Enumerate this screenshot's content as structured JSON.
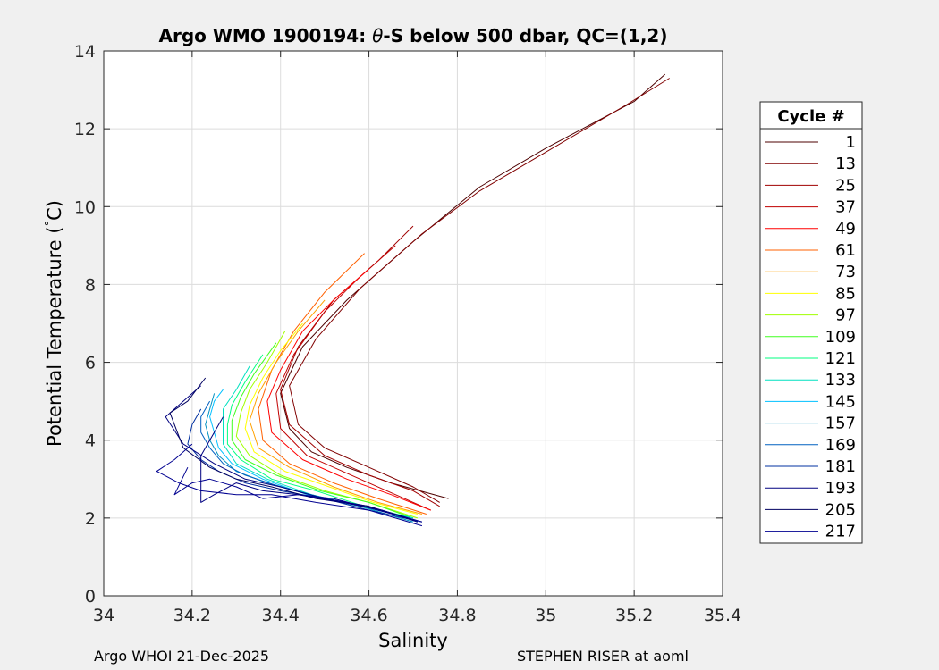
{
  "chart_data": {
    "type": "line",
    "title": "Argo WMO 1900194: θ-S below 500 dbar,  QC=(1,2)",
    "title_parts": {
      "prefix": "Argo WMO 1900194: ",
      "theta": "θ",
      "suffix": "-S below 500 dbar,  QC=(1,2)"
    },
    "xlabel": "Salinity",
    "ylabel": "Potential Temperature (°C)",
    "ylabel_parts": {
      "main": "Potential Temperature (",
      "degree": "°",
      "unit": "C)"
    },
    "xlim": [
      34,
      35.4
    ],
    "ylim": [
      0,
      14
    ],
    "xticks": [
      34,
      34.2,
      34.4,
      34.6,
      34.8,
      35,
      35.2,
      35.4
    ],
    "xtick_labels": [
      "34",
      "34.2",
      "34.4",
      "34.6",
      "34.8",
      "35",
      "35.2",
      "35.4"
    ],
    "yticks": [
      0,
      2,
      4,
      6,
      8,
      10,
      12,
      14
    ],
    "ytick_labels": [
      "0",
      "2",
      "4",
      "6",
      "8",
      "10",
      "12",
      "14"
    ],
    "grid": true,
    "legend": {
      "title": "Cycle #",
      "placement": "outside-right",
      "entries": [
        {
          "label": "1",
          "color": "#4d0000"
        },
        {
          "label": "13",
          "color": "#800000"
        },
        {
          "label": "25",
          "color": "#a00000"
        },
        {
          "label": "37",
          "color": "#c00000"
        },
        {
          "label": "49",
          "color": "#ff0000"
        },
        {
          "label": "61",
          "color": "#ff6000"
        },
        {
          "label": "73",
          "color": "#ffa000"
        },
        {
          "label": "85",
          "color": "#ffff00"
        },
        {
          "label": "97",
          "color": "#a0ff00"
        },
        {
          "label": "109",
          "color": "#40ff20"
        },
        {
          "label": "121",
          "color": "#00ff80"
        },
        {
          "label": "133",
          "color": "#00e0c0"
        },
        {
          "label": "145",
          "color": "#00c0ff"
        },
        {
          "label": "157",
          "color": "#0090c0"
        },
        {
          "label": "169",
          "color": "#0060c0"
        },
        {
          "label": "181",
          "color": "#0030a0"
        },
        {
          "label": "193",
          "color": "#000080"
        },
        {
          "label": "205",
          "color": "#000060"
        },
        {
          "label": "217",
          "color": "#000090"
        }
      ]
    },
    "series": [
      {
        "color": "#4d0000",
        "x": [
          35.27,
          35.2,
          35.0,
          34.85,
          34.7,
          34.55,
          34.45,
          34.4,
          34.42,
          34.47,
          34.55,
          34.65,
          34.78
        ],
        "y": [
          13.4,
          12.7,
          11.5,
          10.5,
          9.1,
          7.6,
          6.4,
          5.2,
          4.3,
          3.7,
          3.3,
          2.9,
          2.5
        ]
      },
      {
        "color": "#800000",
        "x": [
          35.28,
          35.18,
          35.0,
          34.85,
          34.72,
          34.58,
          34.48,
          34.42,
          34.44,
          34.5,
          34.6,
          34.7,
          34.76
        ],
        "y": [
          13.3,
          12.6,
          11.4,
          10.4,
          9.3,
          7.9,
          6.6,
          5.4,
          4.4,
          3.8,
          3.3,
          2.8,
          2.4
        ]
      },
      {
        "color": "#a00000",
        "x": [
          34.7,
          34.62,
          34.52,
          34.44,
          34.4,
          34.42,
          34.5,
          34.6,
          34.7,
          34.76
        ],
        "y": [
          9.5,
          8.6,
          7.6,
          6.4,
          5.3,
          4.4,
          3.6,
          3.1,
          2.7,
          2.3
        ]
      },
      {
        "color": "#c00000",
        "x": [
          34.66,
          34.58,
          34.5,
          34.43,
          34.39,
          34.4,
          34.46,
          34.56,
          34.66,
          34.74
        ],
        "y": [
          9.0,
          8.2,
          7.3,
          6.2,
          5.2,
          4.3,
          3.6,
          3.1,
          2.6,
          2.2
        ]
      },
      {
        "color": "#ff0000",
        "x": [
          34.6,
          34.52,
          34.45,
          34.4,
          34.37,
          34.38,
          34.45,
          34.55,
          34.65,
          34.74
        ],
        "y": [
          8.4,
          7.6,
          6.8,
          5.8,
          5.0,
          4.2,
          3.5,
          3.0,
          2.6,
          2.2
        ]
      },
      {
        "color": "#ff6000",
        "x": [
          34.59,
          34.5,
          34.43,
          34.38,
          34.35,
          34.36,
          34.42,
          34.52,
          34.62,
          34.73
        ],
        "y": [
          8.8,
          7.8,
          6.8,
          5.8,
          4.8,
          4.0,
          3.4,
          2.9,
          2.5,
          2.1
        ]
      },
      {
        "color": "#ffa000",
        "x": [
          34.5,
          34.44,
          34.39,
          34.35,
          34.33,
          34.35,
          34.42,
          34.52,
          34.62,
          34.72
        ],
        "y": [
          7.6,
          6.8,
          6.0,
          5.2,
          4.5,
          3.8,
          3.3,
          2.8,
          2.4,
          2.1
        ]
      },
      {
        "color": "#ffff00",
        "x": [
          34.45,
          34.4,
          34.36,
          34.33,
          34.32,
          34.34,
          34.41,
          34.51,
          34.61,
          34.71
        ],
        "y": [
          7.0,
          6.3,
          5.6,
          4.9,
          4.3,
          3.7,
          3.2,
          2.8,
          2.4,
          2.1
        ]
      },
      {
        "color": "#a0ff00",
        "x": [
          34.41,
          34.37,
          34.33,
          34.31,
          34.3,
          34.33,
          34.4,
          34.5,
          34.6,
          34.71
        ],
        "y": [
          6.8,
          6.0,
          5.3,
          4.7,
          4.1,
          3.6,
          3.1,
          2.7,
          2.4,
          2.0
        ]
      },
      {
        "color": "#40ff20",
        "x": [
          34.39,
          34.34,
          34.31,
          34.29,
          34.29,
          34.32,
          34.39,
          34.49,
          34.6,
          34.7
        ],
        "y": [
          6.5,
          5.7,
          5.1,
          4.5,
          4.0,
          3.5,
          3.1,
          2.7,
          2.4,
          2.0
        ]
      },
      {
        "color": "#00ff80",
        "x": [
          34.36,
          34.32,
          34.29,
          34.28,
          34.28,
          34.31,
          34.38,
          34.48,
          34.59,
          34.7
        ],
        "y": [
          6.2,
          5.5,
          4.9,
          4.4,
          3.9,
          3.5,
          3.0,
          2.7,
          2.3,
          2.0
        ]
      },
      {
        "color": "#00e0c0",
        "x": [
          34.33,
          34.3,
          34.27,
          34.27,
          34.27,
          34.3,
          34.37,
          34.47,
          34.58,
          34.7
        ],
        "y": [
          5.9,
          5.3,
          4.8,
          4.3,
          3.9,
          3.4,
          3.0,
          2.6,
          2.3,
          2.0
        ]
      },
      {
        "color": "#00c0ff",
        "x": [
          34.27,
          34.25,
          34.24,
          34.25,
          34.26,
          34.29,
          34.36,
          34.46,
          34.58,
          34.7
        ],
        "y": [
          5.3,
          5.0,
          4.6,
          4.2,
          3.8,
          3.4,
          3.0,
          2.6,
          2.3,
          1.9
        ]
      },
      {
        "color": "#0090c0",
        "x": [
          34.25,
          34.24,
          34.23,
          34.24,
          34.26,
          34.3,
          34.37,
          34.47,
          34.58,
          34.7
        ],
        "y": [
          5.2,
          4.8,
          4.4,
          4.0,
          3.6,
          3.2,
          2.9,
          2.6,
          2.3,
          1.9
        ]
      },
      {
        "color": "#0060c0",
        "x": [
          34.24,
          34.22,
          34.22,
          34.24,
          34.27,
          34.32,
          34.4,
          34.5,
          34.6,
          34.71
        ],
        "y": [
          5.0,
          4.6,
          4.2,
          3.8,
          3.4,
          3.1,
          2.8,
          2.5,
          2.3,
          1.9
        ]
      },
      {
        "color": "#0030a0",
        "x": [
          34.22,
          34.2,
          34.19,
          34.22,
          34.26,
          34.32,
          34.4,
          34.5,
          34.6,
          34.72
        ],
        "y": [
          4.8,
          4.4,
          3.9,
          3.5,
          3.2,
          2.9,
          2.7,
          2.5,
          2.2,
          1.9
        ]
      },
      {
        "color": "#000080",
        "x": [
          34.22,
          34.17,
          34.14,
          34.18,
          34.25,
          34.32,
          34.4,
          34.5,
          34.6,
          34.72
        ],
        "y": [
          5.4,
          4.9,
          4.6,
          3.9,
          3.4,
          3.0,
          2.8,
          2.5,
          2.3,
          1.9
        ]
      },
      {
        "color": "#000060",
        "x": [
          34.23,
          34.19,
          34.15,
          34.18,
          34.24,
          34.3,
          34.38,
          34.48,
          34.6,
          34.71
        ],
        "y": [
          5.6,
          5.0,
          4.7,
          3.8,
          3.3,
          3.0,
          2.8,
          2.5,
          2.3,
          1.9
        ]
      },
      {
        "color": "#000090",
        "x": [
          34.2,
          34.16,
          34.12,
          34.17,
          34.22,
          34.3,
          34.38,
          34.48,
          34.6,
          34.72
        ],
        "y": [
          3.9,
          3.5,
          3.2,
          2.9,
          2.7,
          2.6,
          2.6,
          2.4,
          2.2,
          1.8
        ]
      },
      {
        "color": "#000090",
        "x": [
          34.19,
          34.16,
          34.2,
          34.24,
          34.3,
          34.36,
          34.44,
          34.52,
          34.62,
          34.72
        ],
        "y": [
          3.3,
          2.6,
          2.9,
          3.0,
          2.8,
          2.5,
          2.6,
          2.5,
          2.2,
          1.9
        ]
      },
      {
        "color": "#000080",
        "x": [
          34.27,
          34.22,
          34.22,
          34.25,
          34.3,
          34.36,
          34.44,
          34.54,
          34.63,
          34.71
        ],
        "y": [
          4.6,
          3.6,
          2.4,
          2.6,
          2.9,
          2.7,
          2.6,
          2.4,
          2.2,
          1.9
        ]
      }
    ]
  },
  "footer": {
    "left": "Argo WHOI 21-Dec-2025",
    "right": "STEPHEN RISER at aoml"
  }
}
